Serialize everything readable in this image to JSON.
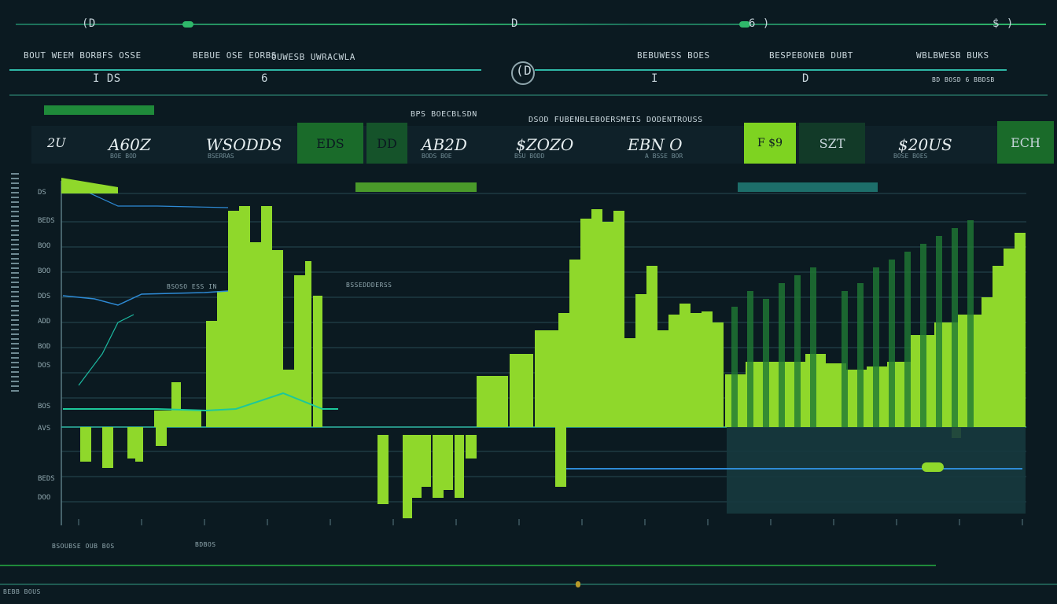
{
  "top_bar": {
    "left_label": "(D",
    "center_label": "D",
    "right_label_1": "6 )",
    "right_label_2": "$ )"
  },
  "row1_labels": [
    "BOUT WEEM BORBFS OSSE",
    "BEBUE OSE EORBS",
    "OUWESB UWRACWLA",
    "BEBUWESS BOES",
    "BESPEBONEB DUBT",
    "WBLBWESB BUKS"
  ],
  "row2": {
    "left": "I DS",
    "left2": "6",
    "center": "(D",
    "right": "I",
    "right2": "D",
    "far_right": "BD BOSD 6 BBDSB"
  },
  "panel_title": "BPS BOECBLSDN",
  "header_center": "DSOD FUBENBLEBOERSMEIS DODENTROUSS",
  "kpis": [
    {
      "value": "2U",
      "sub": ""
    },
    {
      "value": "A60Z",
      "sub": "BOE BOD"
    },
    {
      "value": "WSODDS",
      "sub": "BSERRAS"
    },
    {
      "value": "EDS",
      "sub": ""
    },
    {
      "value": "DD",
      "sub": ""
    },
    {
      "value": "AB2D",
      "sub": "BODS BOE"
    },
    {
      "value": "$ZOZO",
      "sub": "BSU BODD"
    },
    {
      "value": "EBN O",
      "sub": "A BSSE BOR"
    },
    {
      "value": "F $9",
      "sub": ""
    },
    {
      "value": "SZT",
      "sub": ""
    },
    {
      "value": "$20US",
      "sub": "BOSE BOES"
    },
    {
      "value": "ECH",
      "sub": ""
    }
  ],
  "chart_labels": {
    "callout_1": "BSOSO ESS IN",
    "callout_2": "BSSEDDDERSS",
    "y_ticks": [
      "DS",
      "BEDS",
      "BOO",
      "BOO",
      "DDS",
      "ADD",
      "BOD",
      "DOS",
      "BOS",
      "AVS",
      "BEDS",
      "DOO"
    ],
    "x_axis_left": "BSOUBSE OUB BOS",
    "x_axis_mid": "BDBOS"
  },
  "footer": {
    "left": "BEBB BOUS"
  },
  "colors": {
    "background": "#0b1a21",
    "lime": "#8fd82b",
    "green": "#1f8a3a",
    "teal": "#1cb8a0",
    "blue": "#2e8bd6"
  }
}
